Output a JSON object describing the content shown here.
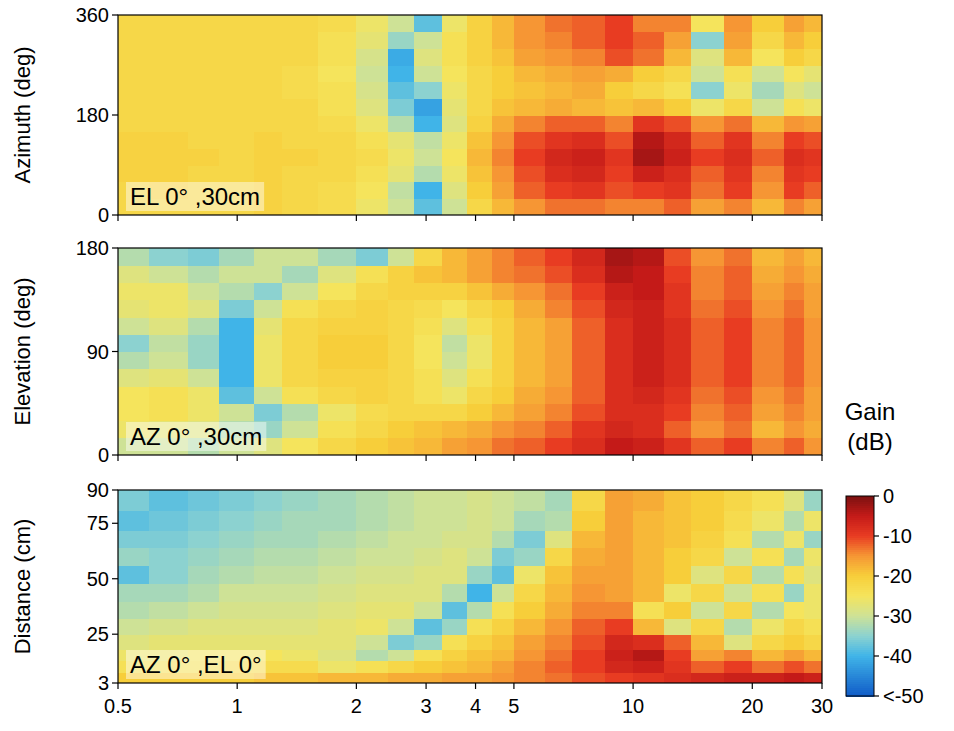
{
  "chart_data": [
    {
      "type": "heatmap",
      "title": "EL 0° ,30cm",
      "ylabel": "Azimuth (deg)",
      "log": "x",
      "tick_labels": "y",
      "xlim": [
        0.5,
        30
      ],
      "xticks": [
        0.5,
        1,
        2,
        3,
        4,
        5,
        10,
        20,
        30
      ],
      "ylim": [
        0,
        360
      ],
      "yticks": [
        0,
        180,
        360
      ],
      "x_bins": [
        0.5,
        0.6,
        0.75,
        0.9,
        1.1,
        1.3,
        1.6,
        2,
        2.4,
        2.8,
        3.3,
        3.8,
        4.4,
        5,
        6,
        7,
        8.5,
        10,
        12,
        14,
        17,
        20,
        24,
        27,
        30
      ],
      "y_bins": [
        0,
        30,
        60,
        90,
        120,
        150,
        180,
        210,
        240,
        270,
        300,
        330,
        360
      ],
      "values": [
        [
          -22,
          -22,
          -22,
          -22,
          -21,
          -22,
          -23,
          -26,
          -30,
          -38,
          -30,
          -22,
          -18,
          -15,
          -13,
          -13,
          -14,
          -14,
          -12,
          -16,
          -14,
          -18,
          -14,
          -16
        ],
        [
          -22,
          -21,
          -22,
          -22,
          -21,
          -22,
          -23,
          -25,
          -31,
          -40,
          -28,
          -20,
          -16,
          -12,
          -10,
          -9,
          -11,
          -10,
          -9,
          -13,
          -10,
          -15,
          -10,
          -12
        ],
        [
          -21,
          -21,
          -22,
          -22,
          -21,
          -22,
          -22,
          -24,
          -27,
          -32,
          -26,
          -19,
          -15,
          -11,
          -8,
          -7,
          -10,
          -6,
          -8,
          -12,
          -9,
          -14,
          -9,
          -10
        ],
        [
          -21,
          -21,
          -21,
          -22,
          -21,
          -21,
          -22,
          -23,
          -26,
          -30,
          -25,
          -18,
          -14,
          -10,
          -7,
          -6,
          -9,
          -3,
          -6,
          -10,
          -8,
          -12,
          -8,
          -9
        ],
        [
          -21,
          -21,
          -22,
          -22,
          -21,
          -22,
          -22,
          -24,
          -27,
          -31,
          -26,
          -19,
          -15,
          -11,
          -9,
          -8,
          -11,
          -4,
          -7,
          -12,
          -9,
          -14,
          -10,
          -11
        ],
        [
          -22,
          -22,
          -22,
          -22,
          -22,
          -22,
          -23,
          -26,
          -32,
          -40,
          -28,
          -21,
          -17,
          -14,
          -12,
          -12,
          -14,
          -9,
          -11,
          -15,
          -13,
          -18,
          -15,
          -16
        ],
        [
          -22,
          -22,
          -22,
          -22,
          -22,
          -22,
          -24,
          -28,
          -36,
          -42,
          -27,
          -22,
          -19,
          -18,
          -17,
          -18,
          -19,
          -18,
          -20,
          -26,
          -22,
          -30,
          -24,
          -26
        ],
        [
          -22,
          -22,
          -22,
          -22,
          -22,
          -23,
          -24,
          -29,
          -38,
          -35,
          -26,
          -22,
          -20,
          -19,
          -18,
          -17,
          -20,
          -22,
          -24,
          -35,
          -26,
          -33,
          -28,
          -30
        ],
        [
          -22,
          -22,
          -22,
          -22,
          -22,
          -23,
          -25,
          -30,
          -40,
          -30,
          -25,
          -22,
          -20,
          -18,
          -17,
          -16,
          -17,
          -20,
          -22,
          -30,
          -24,
          -30,
          -25,
          -27
        ],
        [
          -22,
          -22,
          -22,
          -22,
          -22,
          -22,
          -24,
          -29,
          -41,
          -28,
          -24,
          -21,
          -19,
          -16,
          -15,
          -14,
          -11,
          -13,
          -18,
          -28,
          -18,
          -25,
          -20,
          -22
        ],
        [
          -22,
          -22,
          -22,
          -22,
          -22,
          -22,
          -24,
          -27,
          -34,
          -30,
          -24,
          -21,
          -18,
          -15,
          -14,
          -12,
          -10,
          -12,
          -16,
          -35,
          -16,
          -22,
          -18,
          -20
        ],
        [
          -22,
          -22,
          -22,
          -22,
          -22,
          -22,
          -23,
          -26,
          -30,
          -38,
          -26,
          -21,
          -18,
          -15,
          -13,
          -12,
          -10,
          -14,
          -14,
          -25,
          -15,
          -20,
          -16,
          -18
        ]
      ]
    },
    {
      "type": "heatmap",
      "title": "AZ 0° ,30cm",
      "ylabel": "Elevation (deg)",
      "log": "x",
      "tick_labels": "y",
      "xlim": [
        0.5,
        30
      ],
      "xticks": [
        0.5,
        1,
        2,
        3,
        4,
        5,
        10,
        20,
        30
      ],
      "ylim": [
        0,
        180
      ],
      "yticks": [
        0,
        90,
        180
      ],
      "x_bins": [
        0.5,
        0.6,
        0.75,
        0.9,
        1.1,
        1.3,
        1.6,
        2,
        2.4,
        2.8,
        3.3,
        3.8,
        4.4,
        5,
        6,
        7,
        8.5,
        10,
        12,
        14,
        17,
        20,
        24,
        27,
        30
      ],
      "y_bins": [
        0,
        15,
        30,
        45,
        60,
        75,
        90,
        105,
        120,
        135,
        150,
        165,
        180
      ],
      "values": [
        [
          -30,
          -30,
          -32,
          -30,
          -28,
          -25,
          -22,
          -20,
          -19,
          -18,
          -16,
          -15,
          -13,
          -12,
          -10,
          -8,
          -5,
          -6,
          -9,
          -12,
          -10,
          -14,
          -12,
          -15
        ],
        [
          -26,
          -27,
          -28,
          -32,
          -34,
          -30,
          -24,
          -22,
          -20,
          -19,
          -18,
          -17,
          -15,
          -14,
          -12,
          -9,
          -7,
          -8,
          -12,
          -15,
          -13,
          -18,
          -15,
          -17
        ],
        [
          -25,
          -24,
          -26,
          -30,
          -36,
          -32,
          -26,
          -23,
          -22,
          -22,
          -22,
          -20,
          -18,
          -16,
          -14,
          -11,
          -8,
          -8,
          -10,
          -14,
          -12,
          -16,
          -14,
          -16
        ],
        [
          -25,
          -24,
          -26,
          -38,
          -30,
          -24,
          -22,
          -21,
          -22,
          -24,
          -26,
          -22,
          -20,
          -17,
          -15,
          -12,
          -8,
          -7,
          -9,
          -13,
          -11,
          -15,
          -13,
          -16
        ],
        [
          -28,
          -27,
          -30,
          -40,
          -26,
          -22,
          -21,
          -21,
          -22,
          -24,
          -28,
          -24,
          -21,
          -18,
          -16,
          -12,
          -8,
          -6,
          -8,
          -12,
          -10,
          -14,
          -12,
          -15
        ],
        [
          -32,
          -30,
          -34,
          -40,
          -26,
          -22,
          -20,
          -20,
          -22,
          -25,
          -30,
          -26,
          -21,
          -18,
          -16,
          -12,
          -8,
          -6,
          -8,
          -12,
          -10,
          -14,
          -12,
          -15
        ],
        [
          -35,
          -31,
          -34,
          -40,
          -26,
          -22,
          -20,
          -20,
          -22,
          -25,
          -31,
          -26,
          -21,
          -18,
          -16,
          -12,
          -8,
          -6,
          -8,
          -12,
          -10,
          -14,
          -12,
          -15
        ],
        [
          -30,
          -28,
          -32,
          -40,
          -27,
          -22,
          -21,
          -21,
          -22,
          -24,
          -28,
          -24,
          -21,
          -18,
          -16,
          -12,
          -8,
          -6,
          -8,
          -12,
          -10,
          -14,
          -12,
          -15
        ],
        [
          -27,
          -26,
          -28,
          -36,
          -30,
          -24,
          -22,
          -21,
          -22,
          -23,
          -25,
          -22,
          -20,
          -17,
          -14,
          -11,
          -7,
          -6,
          -9,
          -13,
          -11,
          -15,
          -13,
          -16
        ],
        [
          -26,
          -26,
          -30,
          -32,
          -35,
          -30,
          -25,
          -22,
          -21,
          -21,
          -21,
          -19,
          -17,
          -15,
          -13,
          -10,
          -6,
          -5,
          -9,
          -14,
          -12,
          -16,
          -14,
          -16
        ],
        [
          -28,
          -30,
          -32,
          -30,
          -30,
          -33,
          -28,
          -24,
          -21,
          -19,
          -18,
          -16,
          -14,
          -13,
          -11,
          -8,
          -4,
          -5,
          -10,
          -14,
          -12,
          -17,
          -15,
          -17
        ],
        [
          -32,
          -35,
          -36,
          -33,
          -30,
          -30,
          -33,
          -36,
          -30,
          -22,
          -18,
          -16,
          -14,
          -12,
          -10,
          -7,
          -3,
          -4,
          -11,
          -15,
          -13,
          -18,
          -16,
          -18
        ]
      ]
    },
    {
      "type": "heatmap",
      "title": "AZ 0° ,EL 0°",
      "ylabel": "Distance (cm)",
      "log": "x",
      "tick_labels": true,
      "xlim": [
        0.5,
        30
      ],
      "xticks": [
        0.5,
        1,
        2,
        3,
        4,
        5,
        10,
        20,
        30
      ],
      "ylim": [
        3,
        90
      ],
      "yticks": [
        3,
        25,
        50,
        75,
        90
      ],
      "x_bins": [
        0.5,
        0.6,
        0.75,
        0.9,
        1.1,
        1.3,
        1.6,
        2,
        2.4,
        2.8,
        3.3,
        3.8,
        4.4,
        5,
        6,
        7,
        8.5,
        10,
        12,
        14,
        17,
        20,
        24,
        27,
        30
      ],
      "y_bins": [
        3,
        8,
        13,
        18,
        25,
        32,
        40,
        48,
        56,
        64,
        72,
        81,
        90
      ],
      "values": [
        [
          -20,
          -20,
          -20,
          -20,
          -19,
          -19,
          -18,
          -18,
          -17,
          -17,
          -16,
          -16,
          -15,
          -14,
          -13,
          -11,
          -10,
          -9,
          -8,
          -7,
          -6,
          -6,
          -5,
          -6
        ],
        [
          -24,
          -24,
          -24,
          -23,
          -23,
          -23,
          -26,
          -24,
          -22,
          -20,
          -19,
          -18,
          -16,
          -14,
          -12,
          -10,
          -7,
          -6,
          -9,
          -12,
          -10,
          -13,
          -11,
          -13
        ],
        [
          -26,
          -26,
          -25,
          -25,
          -25,
          -26,
          -28,
          -32,
          -30,
          -24,
          -21,
          -19,
          -18,
          -15,
          -13,
          -10,
          -6,
          -4,
          -10,
          -16,
          -14,
          -18,
          -16,
          -18
        ],
        [
          -28,
          -27,
          -27,
          -27,
          -27,
          -27,
          -27,
          -30,
          -36,
          -34,
          -24,
          -21,
          -19,
          -16,
          -14,
          -11,
          -7,
          -8,
          -12,
          -18,
          -28,
          -22,
          -20,
          -22
        ],
        [
          -30,
          -29,
          -28,
          -28,
          -28,
          -28,
          -27,
          -26,
          -30,
          -38,
          -34,
          -24,
          -21,
          -18,
          -15,
          -12,
          -10,
          -18,
          -28,
          -22,
          -32,
          -26,
          -22,
          -24
        ],
        [
          -32,
          -31,
          -30,
          -29,
          -29,
          -29,
          -28,
          -27,
          -27,
          -30,
          -38,
          -32,
          -24,
          -20,
          -17,
          -14,
          -14,
          -24,
          -20,
          -30,
          -22,
          -32,
          -25,
          -26
        ],
        [
          -33,
          -33,
          -32,
          -30,
          -30,
          -30,
          -29,
          -28,
          -28,
          -28,
          -32,
          -40,
          -30,
          -22,
          -18,
          -15,
          -16,
          -18,
          -26,
          -22,
          -30,
          -24,
          -34,
          -26
        ],
        [
          -38,
          -35,
          -33,
          -32,
          -31,
          -31,
          -30,
          -29,
          -29,
          -28,
          -28,
          -34,
          -38,
          -26,
          -19,
          -16,
          -16,
          -18,
          -20,
          -28,
          -22,
          -32,
          -24,
          -28
        ],
        [
          -34,
          -35,
          -34,
          -33,
          -32,
          -32,
          -31,
          -30,
          -30,
          -29,
          -28,
          -30,
          -36,
          -34,
          -22,
          -17,
          -16,
          -18,
          -20,
          -22,
          -30,
          -24,
          -33,
          -26
        ],
        [
          -36,
          -36,
          -35,
          -34,
          -33,
          -33,
          -32,
          -31,
          -30,
          -30,
          -29,
          -29,
          -32,
          -36,
          -28,
          -18,
          -16,
          -18,
          -19,
          -21,
          -24,
          -32,
          -26,
          -34
        ],
        [
          -38,
          -37,
          -36,
          -35,
          -34,
          -33,
          -33,
          -32,
          -31,
          -30,
          -30,
          -29,
          -30,
          -33,
          -32,
          -20,
          -16,
          -18,
          -19,
          -20,
          -23,
          -26,
          -32,
          -26
        ],
        [
          -36,
          -38,
          -37,
          -36,
          -35,
          -34,
          -33,
          -32,
          -31,
          -30,
          -30,
          -29,
          -30,
          -31,
          -33,
          -22,
          -16,
          -17,
          -19,
          -20,
          -22,
          -24,
          -28,
          -34
        ]
      ],
      "colorbar": {
        "title": "Gain (dB)",
        "range": [
          -50,
          0
        ],
        "ticks": [
          0,
          -10,
          -20,
          -30,
          -40,
          {
            "value": -50,
            "label": "<-50"
          }
        ]
      }
    }
  ]
}
